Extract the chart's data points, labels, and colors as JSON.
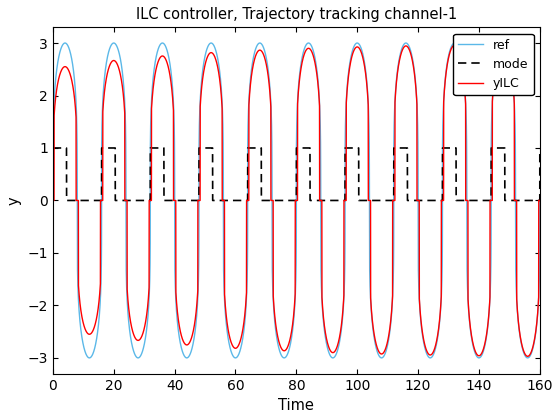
{
  "title": "ILC controller, Trajectory tracking channel-1",
  "xlabel": "Time",
  "ylabel": "y",
  "xlim": [
    0,
    160
  ],
  "ylim": [
    -3.3,
    3.3
  ],
  "xticks": [
    0,
    20,
    40,
    60,
    80,
    100,
    120,
    140,
    160
  ],
  "yticks": [
    -3,
    -2,
    -1,
    0,
    1,
    2,
    3
  ],
  "period": 16,
  "t_end": 160,
  "ref_color": "#5BB8E8",
  "ref_label": "ref",
  "mode_color": "#000000",
  "mode_label": "mode",
  "yILC_color": "#FF0000",
  "yILC_label": "yILC",
  "legend_loc": "upper right"
}
